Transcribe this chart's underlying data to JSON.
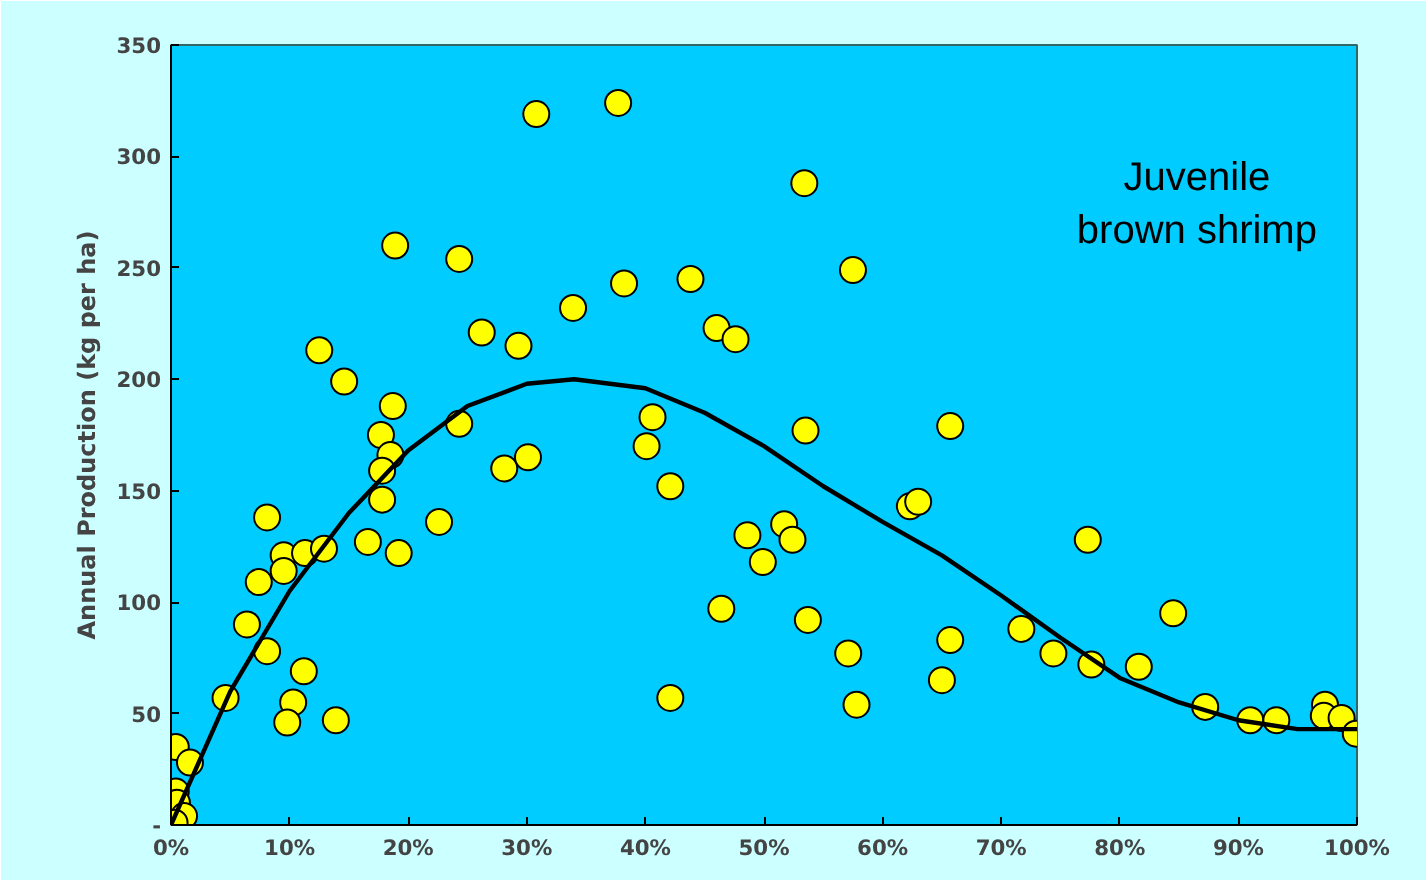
{
  "chart_data": {
    "type": "scatter",
    "ylabel": "Annual Production (kg per ha)",
    "annotations": [
      "Juvenile\nbrown shrimp"
    ],
    "xlim": [
      0,
      100
    ],
    "ylim": [
      0,
      350
    ],
    "xticks": [
      {
        "value": 0,
        "label": "0%"
      },
      {
        "value": 10,
        "label": "10%"
      },
      {
        "value": 20,
        "label": "20%"
      },
      {
        "value": 30,
        "label": "30%"
      },
      {
        "value": 40,
        "label": "40%"
      },
      {
        "value": 50,
        "label": "50%"
      },
      {
        "value": 60,
        "label": "60%"
      },
      {
        "value": 70,
        "label": "70%"
      },
      {
        "value": 80,
        "label": "80%"
      },
      {
        "value": 90,
        "label": "90%"
      },
      {
        "value": 100,
        "label": "100%"
      }
    ],
    "yticks": [
      {
        "value": 0,
        "label": "-"
      },
      50,
      100,
      150,
      200,
      250,
      300,
      350
    ],
    "grid": false,
    "marker": "circle",
    "series": [
      {
        "color": "#ffff00",
        "x": [
          0.4,
          1.6,
          0.4,
          0.5,
          1.1,
          0.3,
          4.6,
          6.4,
          7.4,
          8.1,
          8.1,
          9.5,
          9.5,
          10.3,
          9.8,
          11.2,
          11.3,
          12.5,
          12.9,
          13.9,
          14.6,
          16.6,
          17.7,
          18.5,
          17.8,
          17.8,
          18.7,
          18.9,
          19.2,
          22.6,
          24.3,
          24.3,
          26.2,
          28.1,
          29.3,
          30.1,
          30.8,
          33.9,
          37.7,
          38.2,
          40.1,
          40.6,
          42.1,
          42.1,
          43.8,
          46.0,
          46.4,
          47.6,
          48.6,
          49.9,
          51.7,
          52.4,
          53.4,
          53.5,
          53.7,
          57.1,
          57.5,
          57.8,
          62.3,
          63.0,
          65.0,
          65.7,
          65.7,
          71.7,
          74.4,
          77.3,
          77.6,
          81.6,
          84.5,
          87.2,
          91.0,
          93.2,
          97.3,
          97.2,
          98.7,
          99.9
        ],
        "values": [
          35,
          28,
          15,
          10,
          4,
          1,
          57,
          90,
          109,
          138,
          78,
          121,
          114,
          55,
          46,
          69,
          122,
          213,
          124,
          47,
          199,
          127,
          175,
          166,
          159,
          146,
          188,
          260,
          122,
          136,
          254,
          180,
          221,
          160,
          215,
          165,
          319,
          232,
          324,
          243,
          170,
          183,
          152,
          57,
          245,
          223,
          97,
          218,
          130,
          118,
          135,
          128,
          288,
          177,
          92,
          77,
          249,
          54,
          143,
          145,
          65,
          83,
          179,
          88,
          77,
          128,
          72,
          71,
          95,
          53,
          47,
          47,
          54,
          49,
          48,
          41
        ]
      },
      {
        "type": "line",
        "color": "#000000",
        "marker": "none",
        "line_style": "solid",
        "x": [
          0,
          5,
          10,
          15,
          20,
          25,
          30,
          34,
          40,
          45,
          50,
          55,
          60,
          65,
          70,
          75,
          80,
          85,
          90,
          95,
          100
        ],
        "values": [
          0,
          60,
          105,
          140,
          168,
          188,
          198,
          200,
          196,
          185,
          170,
          152,
          136,
          121,
          103,
          84,
          66,
          55,
          47,
          43,
          43
        ]
      }
    ]
  }
}
